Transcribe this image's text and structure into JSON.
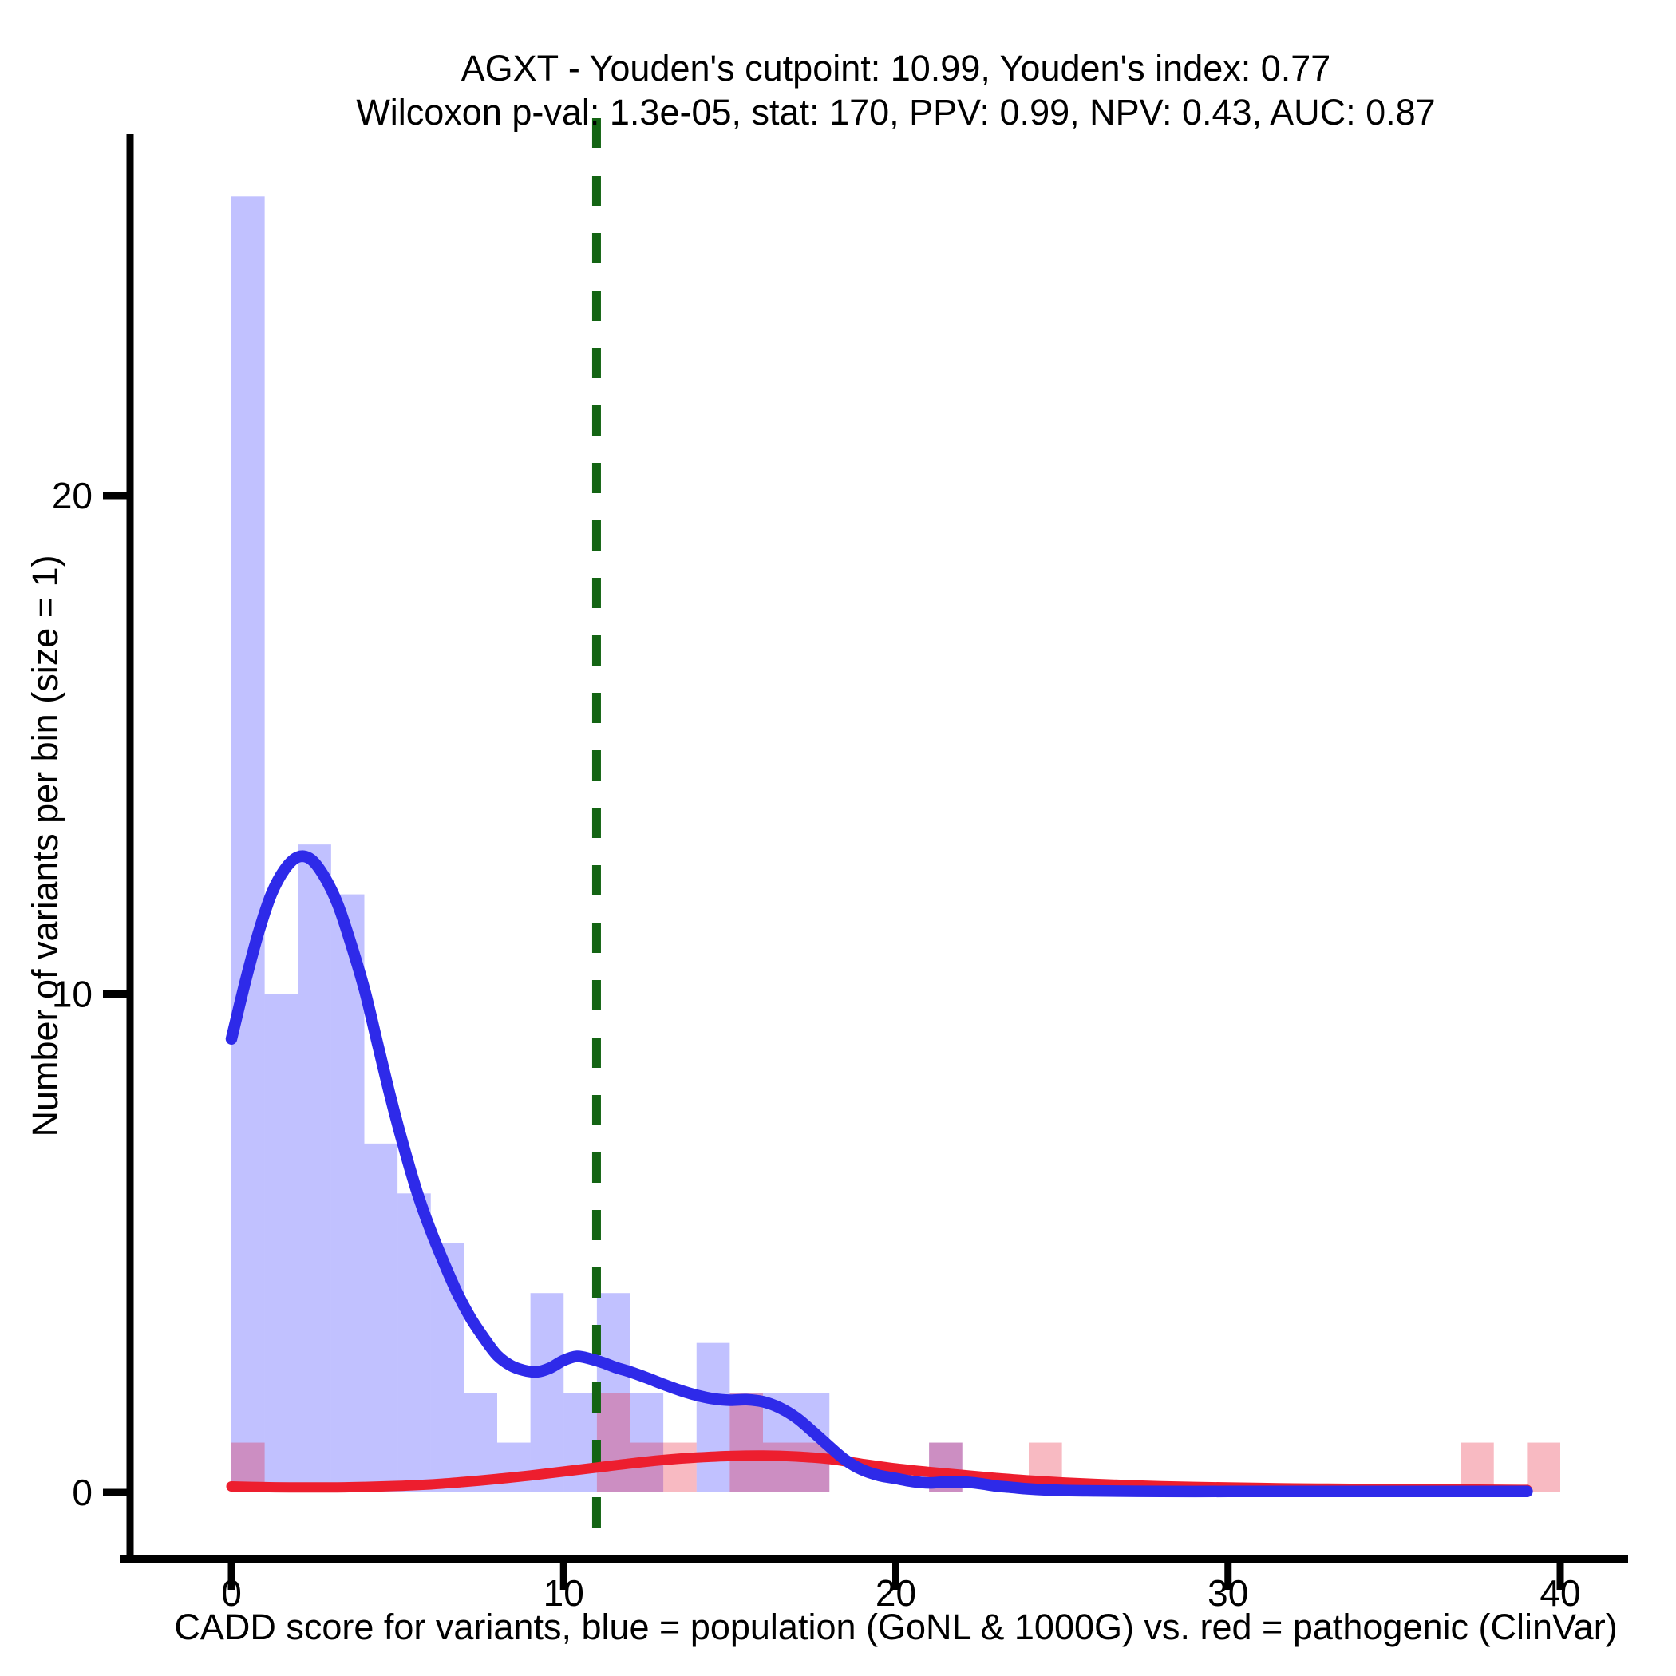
{
  "figure": {
    "title": "AGXT - Youden's cutpoint: 10.99, Youden's index: 0.77",
    "subtitle": "Wilcoxon p-val: 1.3e-05, stat: 170, PPV: 0.99, NPV: 0.43, AUC: 0.87",
    "xlabel": "CADD score for variants, blue = population (GoNL & 1000G) vs. red = pathogenic (ClinVar)",
    "ylabel": "Number of variants per bin (size = 1)"
  },
  "chart_data": {
    "type": "bar",
    "subtype": "histogram-with-density-overlay",
    "gene": "AGXT",
    "stats": {
      "youden_cutpoint": 10.99,
      "youden_index": 0.77,
      "wilcoxon_p_value": "1.3e-05",
      "wilcoxon_stat": 170,
      "PPV": 0.99,
      "NPV": 0.43,
      "AUC": 0.87
    },
    "x_ticks": [
      0,
      10,
      20,
      30,
      40
    ],
    "y_ticks": [
      0,
      10,
      20
    ],
    "xlim": [
      0,
      40
    ],
    "ylim": [
      0,
      27
    ],
    "bin_width": 1,
    "bin_start": 0,
    "grid": "off",
    "legend": "none",
    "cutpoint_line": {
      "x": 10.99,
      "color": "#136413",
      "dash": [
        38,
        34
      ],
      "width": 11
    },
    "series": [
      {
        "name": "population (GoNL & 1000G) histogram",
        "role": "histogram",
        "color": "rgba(0,0,255,0.245)",
        "counts": [
          26,
          10,
          13,
          12,
          7,
          6,
          5,
          2,
          1,
          4,
          2,
          4,
          2,
          0,
          3,
          2,
          2,
          2,
          0,
          0,
          0,
          1,
          0,
          0,
          0,
          0,
          0,
          0,
          0,
          0,
          0,
          0,
          0,
          0,
          0,
          0,
          0,
          0,
          0,
          0
        ]
      },
      {
        "name": "pathogenic (ClinVar) histogram",
        "role": "histogram",
        "color": "rgba(232,28,54,0.30)",
        "counts": [
          1,
          0,
          0,
          0,
          0,
          0,
          0,
          0,
          0,
          0,
          0,
          2,
          1,
          1,
          0,
          2,
          1,
          1,
          0,
          0,
          0,
          1,
          0,
          0,
          1,
          0,
          0,
          0,
          0,
          0,
          0,
          0,
          0,
          0,
          0,
          0,
          0,
          1,
          0,
          1
        ]
      },
      {
        "name": "pathogenic (ClinVar) density",
        "role": "density",
        "color": "#ed1e2e",
        "stroke_width": 13,
        "points": [
          [
            0,
            0.12
          ],
          [
            1,
            0.105
          ],
          [
            2,
            0.1
          ],
          [
            3,
            0.1
          ],
          [
            4,
            0.11
          ],
          [
            5,
            0.13
          ],
          [
            6,
            0.16
          ],
          [
            7,
            0.21
          ],
          [
            8,
            0.27
          ],
          [
            9,
            0.34
          ],
          [
            10,
            0.42
          ],
          [
            11,
            0.5
          ],
          [
            12,
            0.58
          ],
          [
            13,
            0.65
          ],
          [
            14,
            0.7
          ],
          [
            15,
            0.73
          ],
          [
            16,
            0.74
          ],
          [
            17,
            0.72
          ],
          [
            18,
            0.67
          ],
          [
            19,
            0.57
          ],
          [
            20,
            0.48
          ],
          [
            21,
            0.41
          ],
          [
            22,
            0.35
          ],
          [
            23,
            0.29
          ],
          [
            24,
            0.24
          ],
          [
            25,
            0.2
          ],
          [
            26,
            0.17
          ],
          [
            27,
            0.145
          ],
          [
            28,
            0.125
          ],
          [
            29,
            0.11
          ],
          [
            30,
            0.1
          ],
          [
            31,
            0.09
          ],
          [
            32,
            0.08
          ],
          [
            33,
            0.075
          ],
          [
            34,
            0.07
          ],
          [
            35,
            0.065
          ],
          [
            36,
            0.06
          ],
          [
            37,
            0.057
          ],
          [
            38,
            0.054
          ],
          [
            39,
            0.05
          ]
        ]
      },
      {
        "name": "population (GoNL & 1000G) density",
        "role": "density",
        "color": "#2e2ae9",
        "stroke_width": 14.5,
        "points": [
          [
            0,
            9.1
          ],
          [
            0.4,
            10.2
          ],
          [
            0.8,
            11.2
          ],
          [
            1.2,
            12.0
          ],
          [
            1.6,
            12.5
          ],
          [
            2.0,
            12.75
          ],
          [
            2.4,
            12.7
          ],
          [
            2.8,
            12.35
          ],
          [
            3.2,
            11.8
          ],
          [
            3.6,
            11.0
          ],
          [
            4.0,
            10.1
          ],
          [
            4.4,
            9.0
          ],
          [
            4.8,
            7.9
          ],
          [
            5.2,
            6.9
          ],
          [
            5.6,
            6.0
          ],
          [
            6.0,
            5.25
          ],
          [
            6.4,
            4.6
          ],
          [
            6.8,
            4.0
          ],
          [
            7.2,
            3.5
          ],
          [
            7.6,
            3.1
          ],
          [
            8.0,
            2.75
          ],
          [
            8.4,
            2.55
          ],
          [
            8.8,
            2.45
          ],
          [
            9.2,
            2.42
          ],
          [
            9.6,
            2.5
          ],
          [
            10.0,
            2.65
          ],
          [
            10.4,
            2.73
          ],
          [
            10.8,
            2.68
          ],
          [
            11.2,
            2.6
          ],
          [
            11.6,
            2.5
          ],
          [
            12.0,
            2.42
          ],
          [
            12.5,
            2.3
          ],
          [
            13.0,
            2.17
          ],
          [
            13.5,
            2.05
          ],
          [
            14.0,
            1.95
          ],
          [
            14.5,
            1.88
          ],
          [
            15.0,
            1.85
          ],
          [
            15.5,
            1.86
          ],
          [
            16.0,
            1.82
          ],
          [
            16.5,
            1.7
          ],
          [
            17.0,
            1.5
          ],
          [
            17.5,
            1.22
          ],
          [
            18.0,
            0.92
          ],
          [
            18.5,
            0.64
          ],
          [
            19.0,
            0.45
          ],
          [
            19.5,
            0.34
          ],
          [
            20.0,
            0.28
          ],
          [
            20.5,
            0.22
          ],
          [
            21.0,
            0.19
          ],
          [
            21.5,
            0.21
          ],
          [
            22.0,
            0.21
          ],
          [
            22.5,
            0.18
          ],
          [
            23.0,
            0.13
          ],
          [
            23.5,
            0.1
          ],
          [
            24.0,
            0.07
          ],
          [
            25.0,
            0.04
          ],
          [
            26.0,
            0.03
          ],
          [
            28.0,
            0.02
          ],
          [
            30.0,
            0.02
          ],
          [
            32.0,
            0.02
          ],
          [
            34.0,
            0.02
          ],
          [
            36.0,
            0.02
          ],
          [
            38.0,
            0.02
          ],
          [
            39.0,
            0.02
          ]
        ]
      }
    ],
    "colors": {
      "axis": "#000000",
      "blue_fill": "rgba(0,0,255,0.245)",
      "red_fill": "rgba(232,28,54,0.30)",
      "blue_line": "#2e2ae9",
      "red_line": "#ed1e2e",
      "cutpoint_green": "#136413"
    }
  }
}
